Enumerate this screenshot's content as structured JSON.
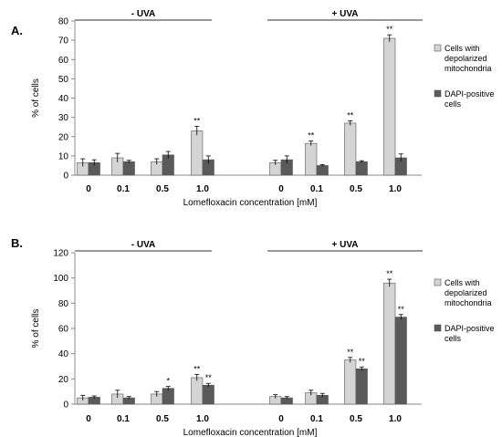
{
  "chart_data": [
    {
      "type": "bar",
      "panel_label": "A.",
      "groups": [
        {
          "label": "- UVA",
          "categories": [
            "0",
            "0.1",
            "0.5",
            "1.0"
          ]
        },
        {
          "label": "+ UVA",
          "categories": [
            "0",
            "0.1",
            "0.5",
            "1.0"
          ]
        }
      ],
      "series": [
        {
          "name": "Cells with depolarized mitochondria",
          "color": "#d4d4d4",
          "values": [
            6.5,
            9,
            7,
            23,
            6.5,
            16.5,
            27,
            71
          ],
          "errors": [
            2,
            2.3,
            1.5,
            2.3,
            1.2,
            1.2,
            1.2,
            1.8
          ]
        },
        {
          "name": "DAPI-positive cells",
          "color": "#5a5a5a",
          "values": [
            6.5,
            7,
            10.5,
            8,
            8,
            5,
            7,
            9
          ],
          "errors": [
            1.5,
            0.7,
            1.8,
            2,
            2,
            0.5,
            0.5,
            2
          ]
        }
      ],
      "annotations": [
        {
          "series": 0,
          "index": 3,
          "text": "**"
        },
        {
          "series": 0,
          "index": 5,
          "text": "**"
        },
        {
          "series": 0,
          "index": 6,
          "text": "**"
        },
        {
          "series": 0,
          "index": 7,
          "text": "**"
        }
      ],
      "xlabel": "Lomefloxacin concentration [mM]",
      "ylabel": "% of cells",
      "ylim": [
        0,
        80
      ],
      "yticks": [
        0,
        10,
        20,
        30,
        40,
        50,
        60,
        70,
        80
      ],
      "legend_position": "right",
      "grid": false
    },
    {
      "type": "bar",
      "panel_label": "B.",
      "groups": [
        {
          "label": "- UVA",
          "categories": [
            "0",
            "0.1",
            "0.5",
            "1.0"
          ]
        },
        {
          "label": "+ UVA",
          "categories": [
            "0",
            "0.1",
            "0.5",
            "1.0"
          ]
        }
      ],
      "series": [
        {
          "name": "Cells with depolarized mitochondria",
          "color": "#d4d4d4",
          "values": [
            5,
            8,
            8,
            21,
            6,
            9,
            35,
            96
          ],
          "errors": [
            2,
            3,
            2,
            2.5,
            1.5,
            2,
            2,
            3
          ]
        },
        {
          "name": "DAPI-positive cells",
          "color": "#5a5a5a",
          "values": [
            5.5,
            5,
            12.5,
            15,
            5,
            7,
            28,
            69
          ],
          "errors": [
            1,
            1,
            1.5,
            1.5,
            1,
            1.5,
            1.5,
            2
          ]
        }
      ],
      "annotations": [
        {
          "series": 1,
          "index": 2,
          "text": "*"
        },
        {
          "series": 0,
          "index": 3,
          "text": "**"
        },
        {
          "series": 1,
          "index": 3,
          "text": "**"
        },
        {
          "series": 0,
          "index": 6,
          "text": "**"
        },
        {
          "series": 1,
          "index": 6,
          "text": "**"
        },
        {
          "series": 0,
          "index": 7,
          "text": "**"
        },
        {
          "series": 1,
          "index": 7,
          "text": "**"
        }
      ],
      "xlabel": "Lomefloxacin concentration [mM]",
      "ylabel": "% of cells",
      "ylim": [
        0,
        120
      ],
      "yticks": [
        0,
        20,
        40,
        60,
        80,
        100,
        120
      ],
      "legend_position": "right",
      "grid": false
    }
  ]
}
